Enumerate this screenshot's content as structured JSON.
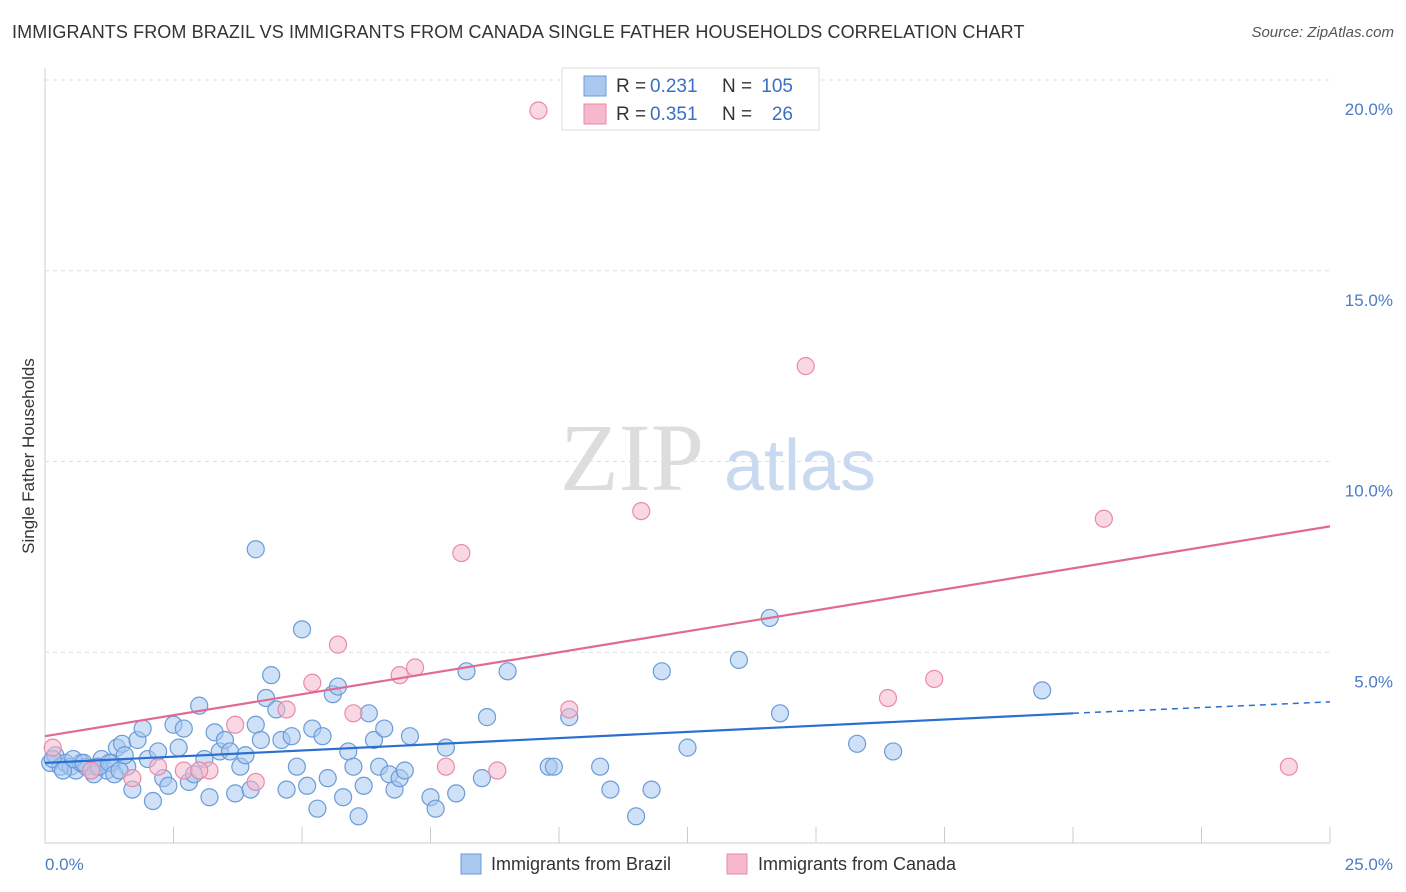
{
  "header": {
    "title": "IMMIGRANTS FROM BRAZIL VS IMMIGRANTS FROM CANADA SINGLE FATHER HOUSEHOLDS CORRELATION CHART",
    "source": "Source: ZipAtlas.com"
  },
  "watermark": {
    "zip": "ZIP",
    "atlas": "atlas"
  },
  "legend_top": {
    "r_label": "R =",
    "n_label": "N =",
    "rows": [
      {
        "r": "0.231",
        "n": "105",
        "color": "#a8c8f0"
      },
      {
        "r": "0.351",
        "n": "26",
        "color": "#f6b8cc"
      }
    ]
  },
  "colors": {
    "brazil_fill": "#a8c8f0",
    "brazil_stroke": "#6b9bd8",
    "brazil_line": "#2b6fd0",
    "canada_fill": "#f6b8cc",
    "canada_stroke": "#e88aa8",
    "canada_line": "#e06a92"
  },
  "chart_data": {
    "type": "scatter",
    "title": "IMMIGRANTS FROM BRAZIL VS IMMIGRANTS FROM CANADA SINGLE FATHER HOUSEHOLDS CORRELATION CHART",
    "xlabel": "",
    "ylabel": "Single Father Households",
    "xlim": [
      0,
      25
    ],
    "ylim": [
      0,
      20
    ],
    "x_tick_labels": [
      "0.0%",
      "25.0%"
    ],
    "y_ticks": [
      5,
      10,
      15,
      20
    ],
    "y_tick_labels": [
      "5.0%",
      "10.0%",
      "15.0%",
      "20.0%"
    ],
    "grid": true,
    "series": [
      {
        "name": "Immigrants from Brazil",
        "trend": {
          "x0": 0,
          "y0": 2.1,
          "x1": 20,
          "y1": 3.4,
          "dash_to_x": 25,
          "dash_to_y": 3.7
        },
        "points": [
          [
            0.1,
            2.1
          ],
          [
            0.2,
            2.3
          ],
          [
            0.3,
            2.0
          ],
          [
            0.4,
            2.1
          ],
          [
            0.5,
            2.0
          ],
          [
            0.6,
            1.9
          ],
          [
            0.7,
            2.1
          ],
          [
            0.8,
            2.0
          ],
          [
            0.9,
            1.9
          ],
          [
            1.0,
            2.0
          ],
          [
            1.1,
            2.2
          ],
          [
            1.2,
            1.9
          ],
          [
            1.3,
            2.1
          ],
          [
            1.4,
            2.5
          ],
          [
            1.5,
            2.6
          ],
          [
            1.6,
            2.0
          ],
          [
            1.7,
            1.4
          ],
          [
            1.8,
            2.7
          ],
          [
            1.9,
            3.0
          ],
          [
            2.0,
            2.2
          ],
          [
            2.1,
            1.1
          ],
          [
            2.2,
            2.4
          ],
          [
            2.3,
            1.7
          ],
          [
            2.4,
            1.5
          ],
          [
            2.5,
            3.1
          ],
          [
            2.6,
            2.5
          ],
          [
            2.7,
            3.0
          ],
          [
            2.8,
            1.6
          ],
          [
            2.9,
            1.8
          ],
          [
            3.0,
            3.6
          ],
          [
            3.1,
            2.2
          ],
          [
            3.2,
            1.2
          ],
          [
            3.3,
            2.9
          ],
          [
            3.4,
            2.4
          ],
          [
            3.5,
            2.7
          ],
          [
            3.6,
            2.4
          ],
          [
            3.7,
            1.3
          ],
          [
            3.8,
            2.0
          ],
          [
            3.9,
            2.3
          ],
          [
            4.0,
            1.4
          ],
          [
            4.1,
            3.1
          ],
          [
            4.2,
            2.7
          ],
          [
            4.3,
            3.8
          ],
          [
            4.4,
            4.4
          ],
          [
            4.5,
            3.5
          ],
          [
            4.6,
            2.7
          ],
          [
            4.7,
            1.4
          ],
          [
            4.8,
            2.8
          ],
          [
            4.9,
            2.0
          ],
          [
            5.0,
            5.6
          ],
          [
            5.1,
            1.5
          ],
          [
            5.2,
            3.0
          ],
          [
            5.3,
            0.9
          ],
          [
            5.4,
            2.8
          ],
          [
            5.5,
            1.7
          ],
          [
            5.6,
            3.9
          ],
          [
            5.7,
            4.1
          ],
          [
            5.8,
            1.2
          ],
          [
            5.9,
            2.4
          ],
          [
            6.0,
            2.0
          ],
          [
            6.1,
            0.7
          ],
          [
            6.2,
            1.5
          ],
          [
            6.3,
            3.4
          ],
          [
            6.4,
            2.7
          ],
          [
            6.5,
            2.0
          ],
          [
            6.6,
            3.0
          ],
          [
            6.7,
            1.8
          ],
          [
            6.8,
            1.4
          ],
          [
            6.9,
            1.7
          ],
          [
            7.0,
            1.9
          ],
          [
            7.1,
            2.8
          ],
          [
            7.5,
            1.2
          ],
          [
            7.6,
            0.9
          ],
          [
            7.8,
            2.5
          ],
          [
            8.0,
            1.3
          ],
          [
            8.2,
            4.5
          ],
          [
            8.5,
            1.7
          ],
          [
            8.6,
            3.3
          ],
          [
            9.0,
            4.5
          ],
          [
            9.8,
            2.0
          ],
          [
            9.9,
            2.0
          ],
          [
            10.2,
            3.3
          ],
          [
            10.8,
            2.0
          ],
          [
            11.0,
            1.4
          ],
          [
            11.5,
            0.7
          ],
          [
            11.8,
            1.4
          ],
          [
            12.0,
            4.5
          ],
          [
            12.5,
            2.5
          ],
          [
            13.5,
            4.8
          ],
          [
            14.1,
            5.9
          ],
          [
            14.3,
            3.4
          ],
          [
            15.8,
            2.6
          ],
          [
            16.5,
            2.4
          ],
          [
            19.4,
            4.0
          ],
          [
            4.1,
            7.7
          ],
          [
            0.15,
            2.2
          ],
          [
            0.35,
            1.9
          ],
          [
            0.55,
            2.2
          ],
          [
            0.75,
            2.1
          ],
          [
            0.95,
            1.8
          ],
          [
            1.05,
            2.0
          ],
          [
            1.25,
            2.1
          ],
          [
            1.35,
            1.8
          ],
          [
            1.45,
            1.9
          ],
          [
            1.55,
            2.3
          ]
        ]
      },
      {
        "name": "Immigrants from Canada",
        "trend": {
          "x0": 0,
          "y0": 2.8,
          "x1": 25,
          "y1": 8.3
        },
        "points": [
          [
            0.15,
            2.5
          ],
          [
            0.9,
            1.9
          ],
          [
            1.7,
            1.7
          ],
          [
            2.2,
            2.0
          ],
          [
            2.7,
            1.9
          ],
          [
            3.2,
            1.9
          ],
          [
            3.7,
            3.1
          ],
          [
            4.1,
            1.6
          ],
          [
            4.7,
            3.5
          ],
          [
            5.2,
            4.2
          ],
          [
            5.7,
            5.2
          ],
          [
            6.0,
            3.4
          ],
          [
            6.9,
            4.4
          ],
          [
            7.2,
            4.6
          ],
          [
            7.8,
            2.0
          ],
          [
            8.1,
            7.6
          ],
          [
            8.8,
            1.9
          ],
          [
            9.6,
            19.2
          ],
          [
            10.2,
            3.5
          ],
          [
            11.6,
            8.7
          ],
          [
            14.8,
            12.5
          ],
          [
            16.4,
            3.8
          ],
          [
            17.3,
            4.3
          ],
          [
            20.6,
            8.5
          ],
          [
            24.2,
            2.0
          ],
          [
            3.0,
            1.9
          ]
        ]
      }
    ]
  },
  "bottom_legend": [
    {
      "label": "Immigrants from Brazil"
    },
    {
      "label": "Immigrants from Canada"
    }
  ]
}
